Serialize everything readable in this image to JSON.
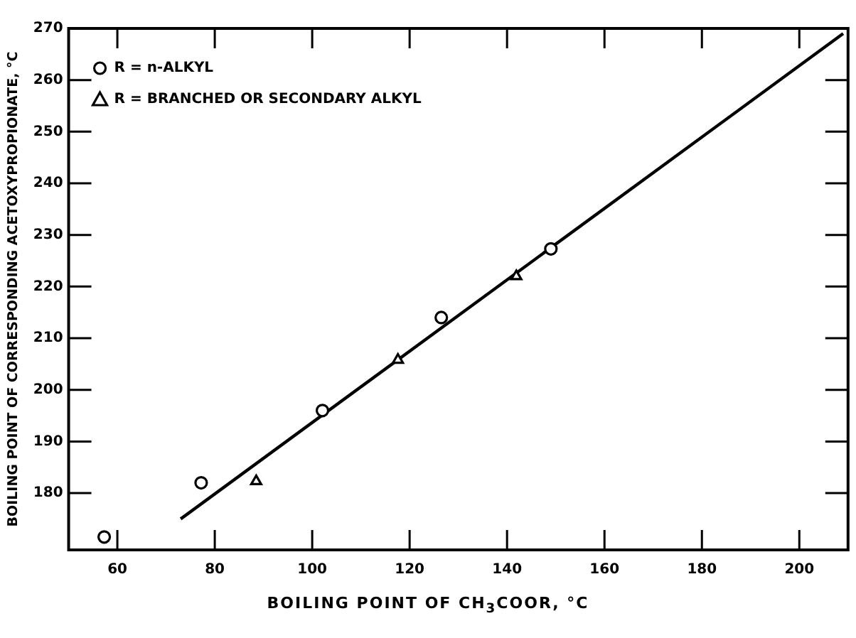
{
  "chart_data": {
    "type": "scatter",
    "xlabel": "BOILING POINT OF CH$_{3}$COOR, °C",
    "ylabel": "BOILING POINT OF CORRESPONDING ACETOXYPROPIONATE, °C",
    "xlim": [
      50,
      210
    ],
    "xticks": [
      60,
      80,
      100,
      120,
      140,
      160,
      180,
      200
    ],
    "ylim": [
      169,
      270
    ],
    "yticks": [
      180,
      190,
      200,
      210,
      220,
      230,
      240,
      250,
      260,
      270
    ],
    "grid": false,
    "legend": "top left",
    "series": [
      {
        "name": "R = n-ALKYL",
        "color": "#000000",
        "marker": "circle",
        "x": [
          57.3,
          77.2,
          102.1,
          126.5,
          149
        ],
        "values": [
          171.5,
          182,
          196,
          214,
          227.3
        ]
      },
      {
        "name": "R = BRANCHED OR SECONDARY ALKYL",
        "color": "#000000",
        "marker": "triangle",
        "x": [
          88.5,
          117.6,
          141.9
        ],
        "values": [
          182.3,
          205.8,
          222
        ]
      },
      {
        "type": "line",
        "color": "#000000",
        "marker": "none",
        "x": [
          73,
          209
        ],
        "values": [
          175,
          269
        ]
      }
    ]
  }
}
